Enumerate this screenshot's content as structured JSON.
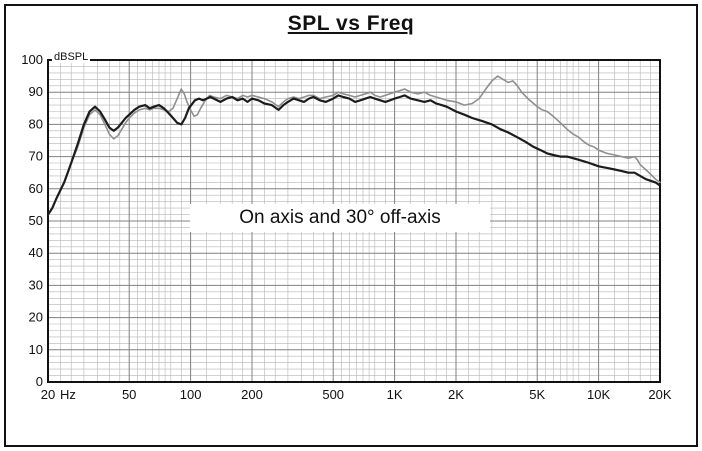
{
  "chart_data": {
    "type": "line",
    "title": "SPL vs Freq",
    "ylabel": "dBSPL",
    "x_unit": "Hz",
    "x_scale": "log",
    "xlim": [
      20,
      20000
    ],
    "ylim": [
      0,
      100
    ],
    "y_tick_step": 10,
    "y_minor_step": 2,
    "annotation": "On axis and 30° off-axis",
    "grid": {
      "on": true,
      "minor_color": "#b5b5b5",
      "major_color": "#808080"
    },
    "x_ticks": [
      {
        "value": 20,
        "label": "20"
      },
      {
        "value": 50,
        "label": "50"
      },
      {
        "value": 100,
        "label": "100"
      },
      {
        "value": 200,
        "label": "200"
      },
      {
        "value": 500,
        "label": "500"
      },
      {
        "value": 1000,
        "label": "1K"
      },
      {
        "value": 2000,
        "label": "2K"
      },
      {
        "value": 5000,
        "label": "5K"
      },
      {
        "value": 10000,
        "label": "10K"
      },
      {
        "value": 20000,
        "label": "20K"
      }
    ],
    "x_minor_multipliers": [
      1,
      1.2,
      1.4,
      1.6,
      1.8,
      2,
      2.3,
      2.6,
      3,
      3.5,
      4,
      4.5,
      5,
      5.5,
      6,
      6.5,
      7,
      7.5,
      8,
      9
    ],
    "series": [
      {
        "key": "off-axis-30",
        "name": "30° off-axis",
        "color": "#8f8f8f",
        "width": 1.6,
        "points": [
          [
            20,
            52
          ],
          [
            21,
            54
          ],
          [
            22,
            57
          ],
          [
            24,
            62
          ],
          [
            26,
            68
          ],
          [
            28,
            73
          ],
          [
            30,
            79
          ],
          [
            32,
            83
          ],
          [
            34,
            84.5
          ],
          [
            36,
            83
          ],
          [
            38,
            80
          ],
          [
            40,
            77
          ],
          [
            42,
            75.5
          ],
          [
            44,
            76.5
          ],
          [
            46,
            78.5
          ],
          [
            48,
            80.5
          ],
          [
            50,
            82
          ],
          [
            53,
            83.5
          ],
          [
            56,
            84.5
          ],
          [
            60,
            85
          ],
          [
            63,
            84.5
          ],
          [
            66,
            85
          ],
          [
            70,
            85
          ],
          [
            74,
            84.5
          ],
          [
            78,
            84
          ],
          [
            82,
            85
          ],
          [
            86,
            88
          ],
          [
            90,
            91
          ],
          [
            93,
            89.5
          ],
          [
            96,
            87
          ],
          [
            100,
            84.5
          ],
          [
            104,
            82.5
          ],
          [
            108,
            83
          ],
          [
            112,
            85
          ],
          [
            118,
            87.5
          ],
          [
            124,
            89
          ],
          [
            130,
            88.5
          ],
          [
            140,
            88
          ],
          [
            150,
            89
          ],
          [
            160,
            88.5
          ],
          [
            170,
            88
          ],
          [
            180,
            89
          ],
          [
            190,
            88.5
          ],
          [
            200,
            89
          ],
          [
            215,
            88.5
          ],
          [
            230,
            88
          ],
          [
            250,
            87
          ],
          [
            270,
            85.5
          ],
          [
            285,
            87
          ],
          [
            300,
            88
          ],
          [
            320,
            88.5
          ],
          [
            340,
            88
          ],
          [
            360,
            88.5
          ],
          [
            380,
            89
          ],
          [
            400,
            89
          ],
          [
            430,
            88
          ],
          [
            460,
            88.5
          ],
          [
            500,
            89
          ],
          [
            530,
            90
          ],
          [
            560,
            89.5
          ],
          [
            600,
            89
          ],
          [
            640,
            88.5
          ],
          [
            680,
            89
          ],
          [
            720,
            89.5
          ],
          [
            760,
            90
          ],
          [
            800,
            89
          ],
          [
            850,
            88.5
          ],
          [
            900,
            89
          ],
          [
            950,
            89.5
          ],
          [
            1000,
            90
          ],
          [
            1060,
            90.5
          ],
          [
            1120,
            91
          ],
          [
            1200,
            90
          ],
          [
            1300,
            89.5
          ],
          [
            1400,
            90
          ],
          [
            1500,
            89
          ],
          [
            1600,
            88.5
          ],
          [
            1700,
            88
          ],
          [
            1800,
            87.5
          ],
          [
            2000,
            87
          ],
          [
            2200,
            86
          ],
          [
            2400,
            86.5
          ],
          [
            2600,
            88
          ],
          [
            2800,
            91
          ],
          [
            3000,
            93.5
          ],
          [
            3200,
            95
          ],
          [
            3400,
            94
          ],
          [
            3600,
            93
          ],
          [
            3800,
            93.5
          ],
          [
            4000,
            92
          ],
          [
            4200,
            90
          ],
          [
            4500,
            88
          ],
          [
            4800,
            86.5
          ],
          [
            5000,
            85.5
          ],
          [
            5300,
            84.5
          ],
          [
            5600,
            84
          ],
          [
            6000,
            82.5
          ],
          [
            6500,
            80.5
          ],
          [
            7000,
            78.5
          ],
          [
            7500,
            77
          ],
          [
            8000,
            76
          ],
          [
            8500,
            74.5
          ],
          [
            9000,
            73.5
          ],
          [
            9500,
            73
          ],
          [
            10000,
            72
          ],
          [
            11000,
            71
          ],
          [
            12000,
            70.5
          ],
          [
            13000,
            70
          ],
          [
            14000,
            69.5
          ],
          [
            15000,
            70
          ],
          [
            15500,
            69
          ],
          [
            16000,
            67.5
          ],
          [
            17000,
            66
          ],
          [
            18000,
            64.5
          ],
          [
            19000,
            63
          ],
          [
            20000,
            62
          ]
        ]
      },
      {
        "key": "on-axis",
        "name": "On axis",
        "color": "#1c1c1c",
        "width": 2.2,
        "points": [
          [
            20,
            52
          ],
          [
            21,
            54
          ],
          [
            22,
            57
          ],
          [
            24,
            62
          ],
          [
            26,
            68
          ],
          [
            28,
            74
          ],
          [
            30,
            80
          ],
          [
            32,
            84
          ],
          [
            34,
            85.5
          ],
          [
            36,
            84
          ],
          [
            38,
            81.5
          ],
          [
            40,
            79
          ],
          [
            42,
            78
          ],
          [
            44,
            79
          ],
          [
            46,
            80.5
          ],
          [
            48,
            82
          ],
          [
            50,
            83
          ],
          [
            53,
            84.5
          ],
          [
            56,
            85.5
          ],
          [
            60,
            86
          ],
          [
            63,
            85
          ],
          [
            66,
            85.5
          ],
          [
            70,
            86
          ],
          [
            74,
            85
          ],
          [
            78,
            83.5
          ],
          [
            82,
            82
          ],
          [
            86,
            80.5
          ],
          [
            90,
            80
          ],
          [
            94,
            82
          ],
          [
            98,
            85
          ],
          [
            105,
            87.5
          ],
          [
            110,
            88
          ],
          [
            115,
            87.5
          ],
          [
            120,
            88
          ],
          [
            125,
            88.5
          ],
          [
            130,
            88
          ],
          [
            140,
            87
          ],
          [
            150,
            88
          ],
          [
            160,
            88.5
          ],
          [
            170,
            87.5
          ],
          [
            180,
            88
          ],
          [
            190,
            87
          ],
          [
            200,
            88
          ],
          [
            215,
            87.5
          ],
          [
            230,
            86.5
          ],
          [
            250,
            86
          ],
          [
            270,
            84.5
          ],
          [
            285,
            86
          ],
          [
            300,
            87
          ],
          [
            320,
            88
          ],
          [
            340,
            87.5
          ],
          [
            360,
            87
          ],
          [
            380,
            88
          ],
          [
            400,
            88.5
          ],
          [
            430,
            87.5
          ],
          [
            460,
            87
          ],
          [
            500,
            88
          ],
          [
            530,
            89
          ],
          [
            560,
            88.5
          ],
          [
            600,
            88
          ],
          [
            640,
            87
          ],
          [
            680,
            87.5
          ],
          [
            720,
            88
          ],
          [
            760,
            88.5
          ],
          [
            800,
            88
          ],
          [
            850,
            87.5
          ],
          [
            900,
            87
          ],
          [
            950,
            87.5
          ],
          [
            1000,
            88
          ],
          [
            1060,
            88.5
          ],
          [
            1120,
            89
          ],
          [
            1200,
            88
          ],
          [
            1300,
            87.5
          ],
          [
            1400,
            87
          ],
          [
            1500,
            87.5
          ],
          [
            1600,
            86.5
          ],
          [
            1700,
            86
          ],
          [
            1800,
            85.5
          ],
          [
            2000,
            84
          ],
          [
            2200,
            83
          ],
          [
            2400,
            82
          ],
          [
            2700,
            81
          ],
          [
            3000,
            80
          ],
          [
            3300,
            78.5
          ],
          [
            3600,
            77.5
          ],
          [
            4000,
            76
          ],
          [
            4400,
            74.5
          ],
          [
            4800,
            73
          ],
          [
            5200,
            72
          ],
          [
            5600,
            71
          ],
          [
            6000,
            70.5
          ],
          [
            6500,
            70
          ],
          [
            7000,
            70
          ],
          [
            7500,
            69.5
          ],
          [
            8000,
            69
          ],
          [
            8500,
            68.5
          ],
          [
            9000,
            68
          ],
          [
            9500,
            67.5
          ],
          [
            10000,
            67
          ],
          [
            11000,
            66.5
          ],
          [
            12000,
            66
          ],
          [
            13000,
            65.5
          ],
          [
            14000,
            65
          ],
          [
            15000,
            65
          ],
          [
            16000,
            64
          ],
          [
            17000,
            63
          ],
          [
            18000,
            62.5
          ],
          [
            19000,
            62
          ],
          [
            20000,
            61
          ]
        ]
      }
    ]
  }
}
